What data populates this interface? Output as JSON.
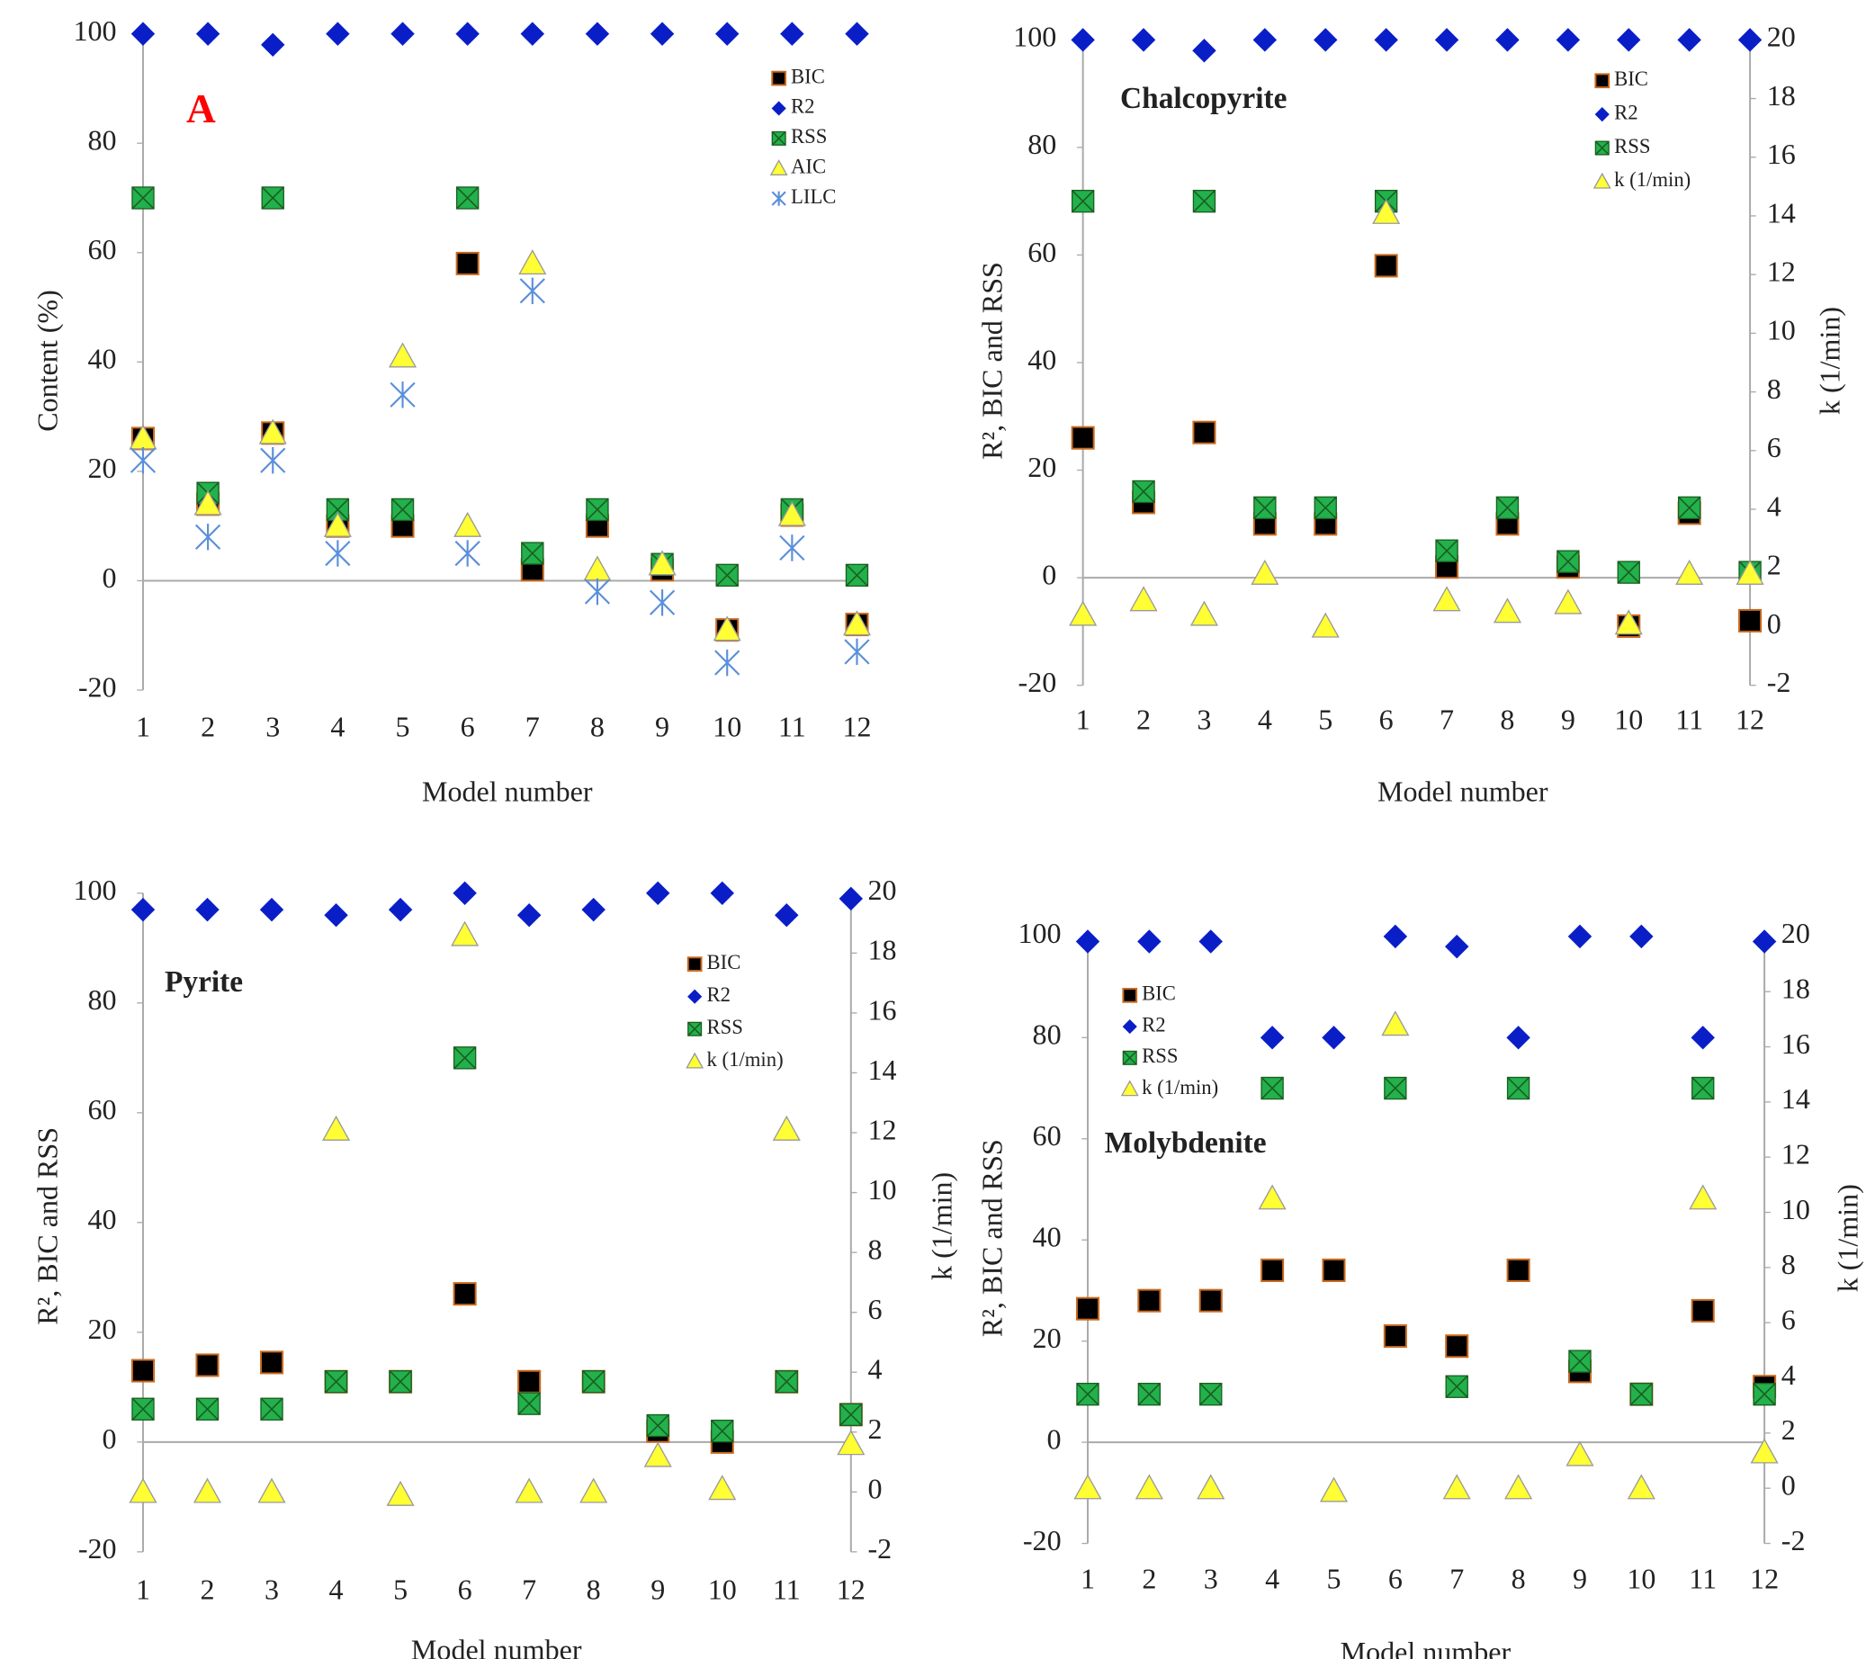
{
  "chart_data": [
    {
      "type": "scatter",
      "annotation": "A",
      "annotation_color": "#ff0000",
      "x_label": "Model number",
      "y_label": "Content (%)",
      "x": [
        1,
        2,
        3,
        4,
        5,
        6,
        7,
        8,
        9,
        10,
        11,
        12
      ],
      "xlim": [
        1,
        12
      ],
      "xticks": [
        1,
        2,
        3,
        4,
        5,
        6,
        7,
        8,
        9,
        10,
        11,
        12
      ],
      "ylim": [
        -20,
        100
      ],
      "yticks": [
        -20,
        0,
        20,
        40,
        60,
        80,
        100
      ],
      "grid": false,
      "legend": "upper right",
      "series": [
        {
          "name": "BIC",
          "marker": "square",
          "color": "#000000",
          "edge": "#c8691e",
          "values": [
            26,
            14,
            27,
            10,
            10,
            58,
            2,
            10,
            2,
            -9,
            12,
            -8
          ]
        },
        {
          "name": "R2",
          "marker": "diamond",
          "color": "#0a1ec8",
          "values": [
            100,
            100,
            98,
            100,
            100,
            100,
            100,
            100,
            100,
            100,
            100,
            100
          ]
        },
        {
          "name": "RSS",
          "marker": "squarex",
          "color": "#22b14c",
          "values": [
            70,
            16,
            70,
            13,
            13,
            70,
            5,
            13,
            3,
            1,
            13,
            1
          ]
        },
        {
          "name": "AIC",
          "marker": "triangle",
          "color": "#ffff33",
          "values": [
            26,
            14,
            27,
            10,
            41,
            10,
            58,
            2,
            3,
            -9,
            12,
            -8
          ]
        },
        {
          "name": "LILC",
          "marker": "asterisk",
          "color": "#5b8fd9",
          "values": [
            22,
            8,
            22,
            5,
            34,
            5,
            53,
            -2,
            -4,
            -15,
            6,
            -13
          ]
        }
      ]
    },
    {
      "type": "scatter",
      "annotation": "Chalcopyrite",
      "x_label": "Model number",
      "y_label": "R², BIC and RSS",
      "y2_label": "k (1/min)",
      "x": [
        1,
        2,
        3,
        4,
        5,
        6,
        7,
        8,
        9,
        10,
        11,
        12
      ],
      "xlim": [
        1,
        12
      ],
      "xticks": [
        1,
        2,
        3,
        4,
        5,
        6,
        7,
        8,
        9,
        10,
        11,
        12
      ],
      "ylim": [
        -20,
        100
      ],
      "yticks": [
        -20,
        0,
        20,
        40,
        60,
        80,
        100
      ],
      "y2lim": [
        -2,
        20
      ],
      "y2ticks": [
        -2,
        0,
        2,
        4,
        6,
        8,
        10,
        12,
        14,
        16,
        18,
        20
      ],
      "grid": false,
      "legend": "upper right",
      "series": [
        {
          "name": "BIC",
          "marker": "square",
          "color": "#000000",
          "edge": "#c8691e",
          "values": [
            26,
            14,
            27,
            10,
            10,
            58,
            2,
            10,
            2,
            -9,
            12,
            -8
          ]
        },
        {
          "name": "R2",
          "marker": "diamond",
          "color": "#0a1ec8",
          "values": [
            100,
            100,
            98,
            100,
            100,
            100,
            100,
            100,
            100,
            100,
            100,
            100
          ]
        },
        {
          "name": "RSS",
          "marker": "squarex",
          "color": "#22b14c",
          "values": [
            70,
            16,
            70,
            13,
            13,
            70,
            5,
            13,
            3,
            1,
            13,
            1
          ]
        },
        {
          "name": "k (1/min)",
          "marker": "triangle",
          "color": "#ffff33",
          "axis": "y2",
          "values": [
            0.4,
            0.9,
            0.4,
            1.8,
            0,
            14.1,
            0.9,
            0.5,
            0.8,
            0.1,
            1.8,
            1.8
          ]
        }
      ]
    },
    {
      "type": "scatter",
      "annotation": "Pyrite",
      "x_label": "Model number",
      "y_label": "R², BIC and RSS",
      "y2_label": "k (1/min)",
      "x": [
        1,
        2,
        3,
        4,
        5,
        6,
        7,
        8,
        9,
        10,
        11,
        12
      ],
      "xlim": [
        1,
        12
      ],
      "xticks": [
        1,
        2,
        3,
        4,
        5,
        6,
        7,
        8,
        9,
        10,
        11,
        12
      ],
      "ylim": [
        -20,
        100
      ],
      "yticks": [
        -20,
        0,
        20,
        40,
        60,
        80,
        100
      ],
      "y2lim": [
        -2,
        20
      ],
      "y2ticks": [
        -2,
        0,
        2,
        4,
        6,
        8,
        10,
        12,
        14,
        16,
        18,
        20
      ],
      "grid": false,
      "legend": "upper right",
      "series": [
        {
          "name": "BIC",
          "marker": "square",
          "color": "#000000",
          "edge": "#c8691e",
          "values": [
            13,
            14,
            14.5,
            11,
            11,
            27,
            11,
            11,
            2,
            0,
            11,
            5
          ]
        },
        {
          "name": "R2",
          "marker": "diamond",
          "color": "#0a1ec8",
          "values": [
            97,
            97,
            97,
            96,
            97,
            100,
            96,
            97,
            100,
            100,
            96,
            99
          ]
        },
        {
          "name": "RSS",
          "marker": "squarex",
          "color": "#22b14c",
          "values": [
            6,
            6,
            6,
            11,
            11,
            70,
            7,
            11,
            3,
            2,
            11,
            5
          ]
        },
        {
          "name": "k (1/min)",
          "marker": "triangle",
          "color": "#ffff33",
          "axis": "y2",
          "values": [
            0,
            0,
            0,
            12.1,
            -0.1,
            18.6,
            0,
            0,
            1.2,
            0.1,
            12.1,
            1.6
          ]
        }
      ]
    },
    {
      "type": "scatter",
      "annotation": "Molybdenite",
      "x_label": "Model number",
      "y_label": "R², BIC and RSS",
      "y2_label": "k (1/min)",
      "x": [
        1,
        2,
        3,
        4,
        5,
        6,
        7,
        8,
        9,
        10,
        11,
        12
      ],
      "xlim": [
        1,
        12
      ],
      "xticks": [
        1,
        2,
        3,
        4,
        5,
        6,
        7,
        8,
        9,
        10,
        11,
        12
      ],
      "ylim": [
        -20,
        100
      ],
      "yticks": [
        -20,
        0,
        20,
        40,
        60,
        80,
        100
      ],
      "y2lim": [
        -2,
        20
      ],
      "y2ticks": [
        -2,
        0,
        2,
        4,
        6,
        8,
        10,
        12,
        14,
        16,
        18,
        20
      ],
      "grid": false,
      "legend": "upper left",
      "series": [
        {
          "name": "BIC",
          "marker": "square",
          "color": "#000000",
          "edge": "#c8691e",
          "values": [
            26.4,
            28,
            28,
            34,
            34,
            21,
            19,
            34,
            14,
            9.5,
            26,
            11
          ]
        },
        {
          "name": "R2",
          "marker": "diamond",
          "color": "#0a1ec8",
          "values": [
            99,
            99,
            99,
            80,
            80,
            100,
            98,
            80,
            100,
            100,
            80,
            99
          ]
        },
        {
          "name": "RSS",
          "marker": "squarex",
          "color": "#22b14c",
          "values": [
            9.5,
            9.5,
            9.5,
            70,
            null,
            70,
            11,
            70,
            16,
            9.5,
            70,
            9.5
          ]
        },
        {
          "name": "k (1/min)",
          "marker": "triangle",
          "color": "#ffff33",
          "axis": "y2",
          "values": [
            0,
            0,
            0,
            10.5,
            -0.1,
            16.8,
            0,
            0,
            1.2,
            0,
            10.5,
            1.3
          ]
        }
      ]
    }
  ]
}
